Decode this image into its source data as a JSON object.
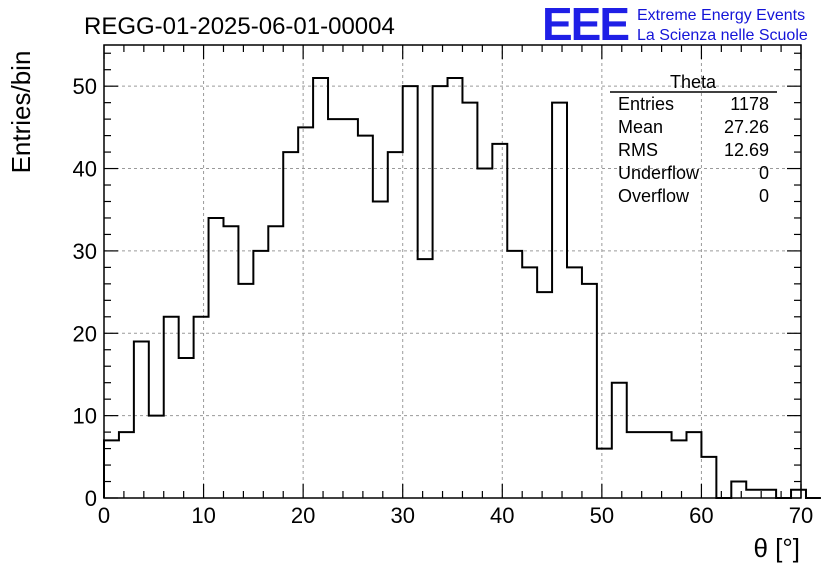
{
  "chart_data": {
    "type": "histogram",
    "title": "REGG-01-2025-06-01-00004",
    "xlabel": "θ [°]",
    "ylabel": "Entries/bin",
    "xlim": [
      0,
      70
    ],
    "ylim": [
      0,
      55
    ],
    "x_ticks": [
      0,
      10,
      20,
      30,
      40,
      50,
      60,
      70
    ],
    "y_ticks": [
      0,
      10,
      20,
      30,
      40,
      50
    ],
    "grid": true,
    "bin_width": 1.5,
    "bin_start": 0,
    "values": [
      7,
      8,
      19,
      10,
      22,
      17,
      22,
      34,
      33,
      26,
      30,
      33,
      42,
      45,
      51,
      46,
      46,
      44,
      36,
      42,
      50,
      29,
      50,
      51,
      48,
      40,
      43,
      30,
      28,
      25,
      48,
      28,
      26,
      6,
      14,
      8,
      8,
      8,
      7,
      8,
      5,
      0,
      2,
      1,
      1,
      0,
      1,
      0
    ],
    "colors": {
      "line": "#000000",
      "grid": "#9a9a9a",
      "logo": "#1f1fe6"
    }
  },
  "stats": {
    "name": "Theta",
    "rows": [
      {
        "label": "Entries",
        "value": "1178"
      },
      {
        "label": "Mean",
        "value": "27.26"
      },
      {
        "label": "RMS",
        "value": "12.69"
      },
      {
        "label": "Underflow",
        "value": "0"
      },
      {
        "label": "Overflow",
        "value": "0"
      }
    ]
  },
  "logo": {
    "mark": "EEE",
    "line1": "Extreme Energy Events",
    "line2": "La Scienza nelle Scuole"
  }
}
